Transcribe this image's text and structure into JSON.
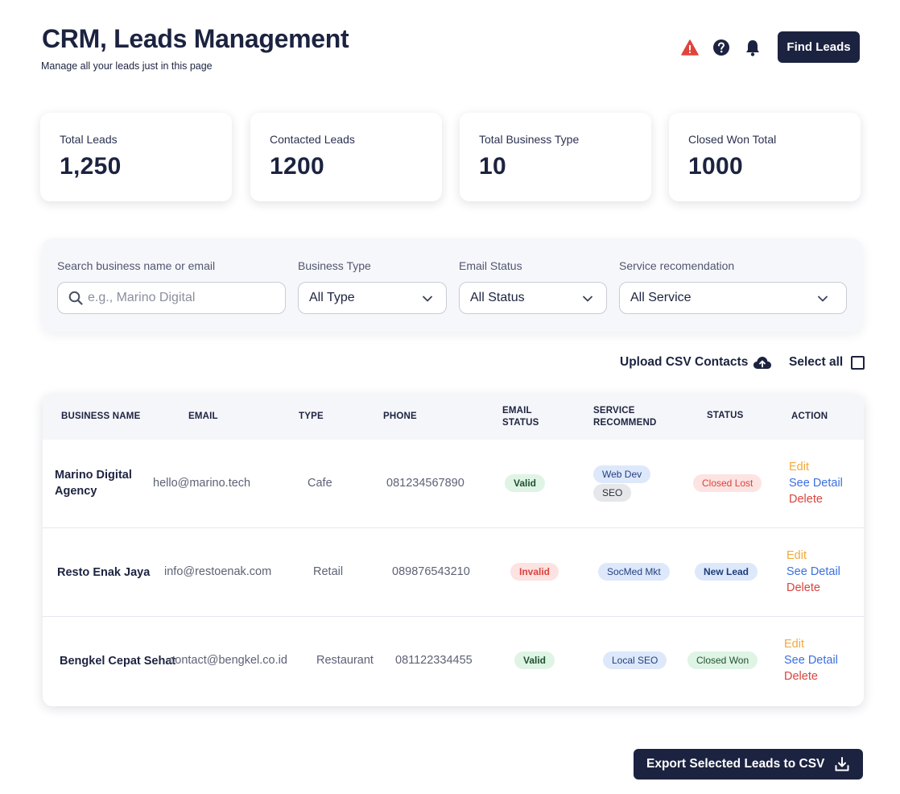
{
  "header": {
    "title": "CRM, Leads Management",
    "subtitle": "Manage all your leads just in this page",
    "find_leads_label": "Find Leads",
    "icons": [
      "warning-icon",
      "help-icon",
      "bell-icon"
    ]
  },
  "stats": [
    {
      "label": "Total Leads",
      "value": "1,250"
    },
    {
      "label": "Contacted Leads",
      "value": "1200"
    },
    {
      "label": "Total Business Type",
      "value": "10"
    },
    {
      "label": "Closed Won Total",
      "value": "1000"
    }
  ],
  "filters": {
    "search": {
      "label": "Search business name or email",
      "placeholder": "e.g., Marino Digital",
      "value": ""
    },
    "business_type": {
      "label": "Business Type",
      "value": "All Type"
    },
    "email_status": {
      "label": "Email Status",
      "value": "All Status"
    },
    "service": {
      "label": "Service recomendation",
      "value": "All Service"
    }
  },
  "toolbar": {
    "upload_label": "Upload CSV Contacts",
    "select_all_label": "Select all"
  },
  "table": {
    "headers": {
      "business_name": "BUSINESS NAME",
      "email": "EMAIL",
      "type": "TYPE",
      "phone": "PHONE",
      "email_status_1": "EMAIL",
      "email_status_2": "STATUS",
      "service_1": "SERVICE",
      "service_2": "RECOMMEND",
      "status": "STATUS",
      "action": "ACTION"
    },
    "rows": [
      {
        "name_1": "Marino Digital",
        "name_2": "Agency",
        "email": "hello@marino.tech",
        "type": "Cafe",
        "phone": "081234567890",
        "email_status": "Valid",
        "services": [
          "Web Dev",
          "SEO"
        ],
        "status": "Closed Lost",
        "actions": {
          "edit": "Edit",
          "detail": "See Detail",
          "delete": "Delete"
        }
      },
      {
        "name_1": "Resto Enak Jaya",
        "email": "info@restoenak.com",
        "type": "Retail",
        "phone": "089876543210",
        "email_status": "Invalid",
        "services": [
          "SocMed Mkt"
        ],
        "status": "New Lead",
        "actions": {
          "edit": "Edit",
          "detail": "See Detail",
          "delete": "Delete"
        }
      },
      {
        "name_1": "Bengkel Cepat Sehat",
        "email": "contact@bengkel.co.id",
        "type": "Restaurant",
        "phone": "081122334455",
        "email_status": "Valid",
        "services": [
          "Local SEO"
        ],
        "status": "Closed Won",
        "actions": {
          "edit": "Edit",
          "detail": "See Detail",
          "delete": "Delete"
        }
      }
    ]
  },
  "footer": {
    "export_label": "Export Selected Leads to CSV"
  },
  "colors": {
    "primary": "#1c2340",
    "edit": "#f2a93b",
    "detail": "#3a6fe0",
    "delete": "#d9443c",
    "valid_bg": "#dff4e5",
    "invalid_bg": "#fde2e2"
  }
}
